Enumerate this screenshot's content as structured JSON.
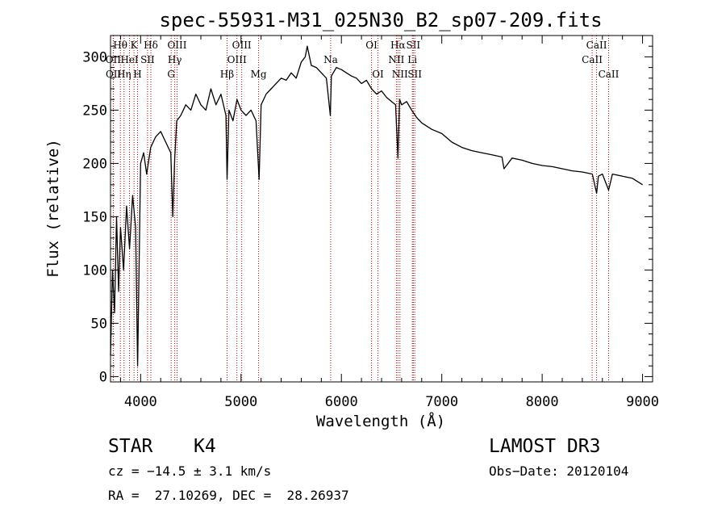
{
  "chart_data": {
    "type": "line",
    "title": "spec-55931-M31_025N30_B2_sp07-209.fits",
    "xlabel": "Wavelength (Å)",
    "ylabel": "Flux (relative)",
    "xlim": [
      3700,
      9100
    ],
    "ylim": [
      -5,
      320
    ],
    "x_ticks": [
      4000,
      5000,
      6000,
      7000,
      8000,
      9000
    ],
    "y_ticks": [
      0,
      50,
      100,
      150,
      200,
      250,
      300
    ],
    "series": [
      {
        "name": "Flux",
        "color": "#000000",
        "x": [
          3700,
          3720,
          3740,
          3760,
          3780,
          3800,
          3830,
          3860,
          3890,
          3920,
          3950,
          3970,
          4000,
          4030,
          4060,
          4100,
          4150,
          4200,
          4250,
          4300,
          4320,
          4340,
          4360,
          4400,
          4450,
          4500,
          4550,
          4600,
          4650,
          4700,
          4750,
          4800,
          4850,
          4861,
          4880,
          4920,
          4960,
          5000,
          5050,
          5100,
          5150,
          5180,
          5200,
          5250,
          5300,
          5350,
          5400,
          5450,
          5500,
          5550,
          5600,
          5640,
          5660,
          5700,
          5750,
          5800,
          5850,
          5890,
          5900,
          5950,
          6000,
          6050,
          6100,
          6150,
          6200,
          6250,
          6300,
          6350,
          6400,
          6450,
          6500,
          6540,
          6563,
          6580,
          6600,
          6650,
          6700,
          6750,
          6800,
          6900,
          7000,
          7100,
          7200,
          7300,
          7400,
          7500,
          7600,
          7620,
          7700,
          7800,
          7900,
          8000,
          8100,
          8200,
          8300,
          8400,
          8500,
          8542,
          8560,
          8600,
          8662,
          8700,
          8800,
          8900,
          9000
        ],
        "values": [
          20,
          100,
          60,
          150,
          80,
          140,
          100,
          160,
          120,
          170,
          140,
          10,
          200,
          210,
          190,
          215,
          225,
          230,
          220,
          210,
          150,
          205,
          240,
          245,
          255,
          250,
          265,
          255,
          250,
          270,
          255,
          265,
          245,
          185,
          250,
          240,
          260,
          250,
          245,
          250,
          240,
          185,
          255,
          265,
          270,
          275,
          280,
          278,
          285,
          280,
          295,
          300,
          310,
          292,
          290,
          285,
          280,
          245,
          282,
          290,
          288,
          285,
          282,
          280,
          275,
          278,
          270,
          265,
          268,
          262,
          258,
          255,
          205,
          260,
          255,
          258,
          250,
          243,
          238,
          232,
          228,
          220,
          215,
          212,
          210,
          208,
          206,
          195,
          205,
          203,
          200,
          198,
          197,
          195,
          193,
          192,
          190,
          172,
          188,
          190,
          175,
          190,
          188,
          186,
          180
        ]
      }
    ],
    "spectral_lines": [
      {
        "name": "Hθ",
        "x": 3798,
        "row": 0
      },
      {
        "name": "OII",
        "x": 3727,
        "row": 1
      },
      {
        "name": "OII",
        "x": 3729,
        "row": 2
      },
      {
        "name": "K",
        "x": 3934,
        "row": 0
      },
      {
        "name": "HeI",
        "x": 3889,
        "row": 1
      },
      {
        "name": "Hη",
        "x": 3835,
        "row": 2
      },
      {
        "name": "SII",
        "x": 4069,
        "row": 1
      },
      {
        "name": "H",
        "x": 3969,
        "row": 2
      },
      {
        "name": "Hδ",
        "x": 4102,
        "row": 0
      },
      {
        "name": "OIII",
        "x": 4363,
        "row": 0
      },
      {
        "name": "Hγ",
        "x": 4340,
        "row": 1
      },
      {
        "name": "G",
        "x": 4304,
        "row": 2
      },
      {
        "name": "OIII",
        "x": 5007,
        "row": 0
      },
      {
        "name": "OIII",
        "x": 4959,
        "row": 1
      },
      {
        "name": "Hβ",
        "x": 4861,
        "row": 2
      },
      {
        "name": "Mg",
        "x": 5175,
        "row": 2
      },
      {
        "name": "Na",
        "x": 5893,
        "row": 1
      },
      {
        "name": "OI",
        "x": 6300,
        "row": 0
      },
      {
        "name": "OI",
        "x": 6364,
        "row": 2
      },
      {
        "name": "Hα",
        "x": 6563,
        "row": 0
      },
      {
        "name": "SII",
        "x": 6716,
        "row": 0
      },
      {
        "name": "NII",
        "x": 6548,
        "row": 1
      },
      {
        "name": "Li",
        "x": 6707,
        "row": 1
      },
      {
        "name": "NII",
        "x": 6583,
        "row": 2
      },
      {
        "name": "SII",
        "x": 6731,
        "row": 2
      },
      {
        "name": "CaII",
        "x": 8542,
        "row": 0
      },
      {
        "name": "CaII",
        "x": 8498,
        "row": 1
      },
      {
        "name": "CaII",
        "x": 8662,
        "row": 2
      }
    ]
  },
  "info": {
    "class": "STAR",
    "subclass": "K4",
    "survey": "LAMOST DR3",
    "cz": "cz = −14.5 ± 3.1 km/s",
    "obs_date": "Obs−Date: 20120104",
    "coords": "RA =  27.10269, DEC =  28.26937"
  },
  "colors": {
    "line_marker": "#c00000",
    "spectrum": "#000000"
  }
}
